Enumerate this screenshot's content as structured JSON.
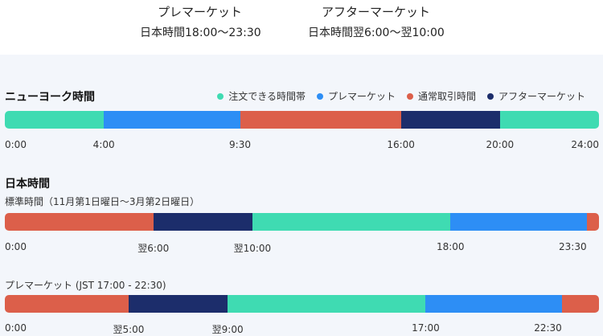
{
  "sessions": [
    {
      "title": "プレマーケット",
      "time": "日本時間18:00〜23:30"
    },
    {
      "title": "アフターマーケット",
      "time": "日本時間翌6:00〜翌10:00"
    }
  ],
  "legend": [
    {
      "label": "注文できる時間帯",
      "color": "#3fdbb2"
    },
    {
      "label": "プレマーケット",
      "color": "#2d8ef5"
    },
    {
      "label": "通常取引時間",
      "color": "#dc5f4a"
    },
    {
      "label": "アフターマーケット",
      "color": "#1c2d6b"
    }
  ],
  "ny": {
    "title": "ニューヨーク時間",
    "segments": [
      {
        "start": 0,
        "end": 4,
        "color": "#3fdbb2"
      },
      {
        "start": 4,
        "end": 9.5,
        "color": "#2d8ef5"
      },
      {
        "start": 9.5,
        "end": 16,
        "color": "#dc5f4a"
      },
      {
        "start": 16,
        "end": 20,
        "color": "#1c2d6b"
      },
      {
        "start": 20,
        "end": 24,
        "color": "#3fdbb2"
      }
    ],
    "ticks": [
      {
        "label": "0:00",
        "pos": 0
      },
      {
        "label": "4:00",
        "pos": 4
      },
      {
        "label": "9:30",
        "pos": 9.5
      },
      {
        "label": "16:00",
        "pos": 16
      },
      {
        "label": "20:00",
        "pos": 20
      },
      {
        "label": "24:00",
        "pos": 24
      }
    ]
  },
  "jp": {
    "title": "日本時間",
    "standard": {
      "label": "標準時間（11月第1日曜日〜3月第2日曜日）",
      "segments": [
        {
          "start": 0,
          "end": 6,
          "color": "#dc5f4a"
        },
        {
          "start": 6,
          "end": 10,
          "color": "#1c2d6b"
        },
        {
          "start": 10,
          "end": 18,
          "color": "#3fdbb2"
        },
        {
          "start": 18,
          "end": 23.5,
          "color": "#2d8ef5"
        },
        {
          "start": 23.5,
          "end": 24,
          "color": "#dc5f4a"
        }
      ],
      "ticks": [
        {
          "label": "0:00",
          "pos": 0
        },
        {
          "label": "翌6:00",
          "pos": 6
        },
        {
          "label": "翌10:00",
          "pos": 10
        },
        {
          "label": "18:00",
          "pos": 18
        },
        {
          "label": "23:30",
          "pos": 23.5
        }
      ]
    },
    "premarket": {
      "label": "プレマーケット (JST 17:00 - 22:30)",
      "segments": [
        {
          "start": 0,
          "end": 5,
          "color": "#dc5f4a"
        },
        {
          "start": 5,
          "end": 9,
          "color": "#1c2d6b"
        },
        {
          "start": 9,
          "end": 17,
          "color": "#3fdbb2"
        },
        {
          "start": 17,
          "end": 22.5,
          "color": "#2d8ef5"
        },
        {
          "start": 22.5,
          "end": 24,
          "color": "#dc5f4a"
        }
      ],
      "ticks": [
        {
          "label": "0:00",
          "pos": 0
        },
        {
          "label": "翌5:00",
          "pos": 5
        },
        {
          "label": "翌9:00",
          "pos": 9
        },
        {
          "label": "17:00",
          "pos": 17
        },
        {
          "label": "22:30",
          "pos": 22.5
        }
      ]
    }
  }
}
